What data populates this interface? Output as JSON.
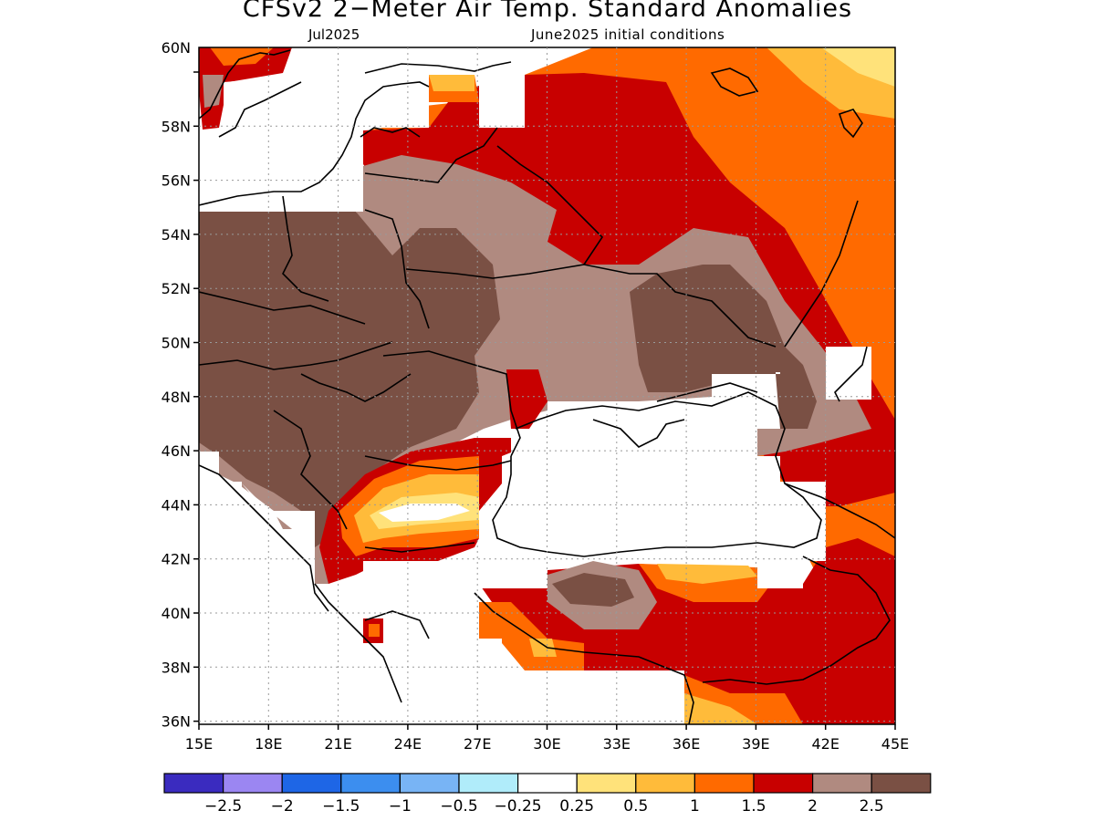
{
  "header": {
    "title": "CFSv2 2−Meter Air Temp. Standard Anomalies",
    "subtitle_left": "Jul2025",
    "subtitle_right": "June2025 initial conditions"
  },
  "axes": {
    "lat_labels": [
      "60N",
      "58N",
      "56N",
      "54N",
      "52N",
      "50N",
      "48N",
      "46N",
      "44N",
      "42N",
      "40N",
      "38N",
      "36N"
    ],
    "lon_labels": [
      "15E",
      "18E",
      "21E",
      "24E",
      "27E",
      "30E",
      "33E",
      "36E",
      "39E",
      "42E",
      "45E"
    ]
  },
  "colorbar": {
    "colors": [
      "#3a2bbf",
      "#9b86f2",
      "#1e66e6",
      "#3c8eef",
      "#78b4f5",
      "#b0ecfa",
      "#ffffff",
      "#ffe27a",
      "#ffbb3a",
      "#ff6a00",
      "#c80000",
      "#b08a80",
      "#7a5044"
    ],
    "labels": [
      "−2.5",
      "−2",
      "−1.5",
      "−1",
      "−0.5",
      "−0.25",
      "0.25",
      "0.5",
      "1",
      "1.5",
      "2",
      "2.5"
    ]
  }
}
